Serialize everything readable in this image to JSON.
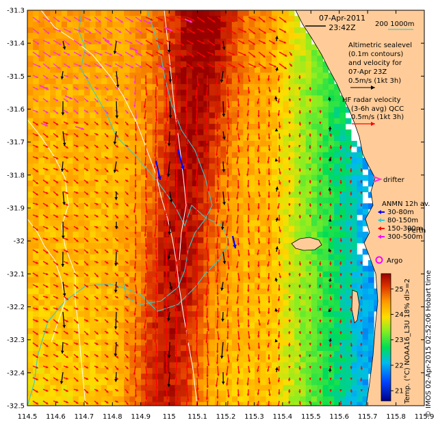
{
  "title": {
    "date": "07-Apr-2011",
    "time": "23:42Z"
  },
  "axes": {
    "lon_ticks": [
      "114.5",
      "114.6",
      "114.7",
      "114.8",
      "114.9",
      "115",
      "115.1",
      "115.2",
      "115.3",
      "115.4",
      "115.5",
      "115.6",
      "115.7",
      "115.8",
      "115.9"
    ],
    "lat_ticks": [
      "-31.3",
      "-31.4",
      "-31.5",
      "-31.6",
      "-31.7",
      "-31.8",
      "-31.9",
      "-32",
      "-32.1",
      "-32.2",
      "-32.3",
      "-32.4",
      "-32.5"
    ],
    "lon_range": [
      114.5,
      115.9
    ],
    "lat_range": [
      -32.5,
      -31.3
    ]
  },
  "legend": {
    "isobaths": "200  1000m",
    "altimetry_line1": "Altimetric sealevel",
    "altimetry_line2": "(0.1m contours)",
    "altimetry_line3": "and velocity for",
    "altimetry_line4": "07-Apr 23Z",
    "altimetry_scale": "0.5m/s (1kt 3h)",
    "hf_line1": "HF radar velocity",
    "hf_line2": "(3-6h avg) QCC",
    "hf_scale": "0.5m/s (1kt 3h)",
    "drifter": "drifter",
    "anmn_title": "ANMN 12h av.",
    "anmn_items": [
      "30-80m",
      "80-150m",
      "150-300m",
      "300-500m"
    ],
    "anmn_colors": [
      "#0000ff",
      "#33cccc",
      "#ff0000",
      "#ff00ff"
    ],
    "argo": "Argo",
    "perth": "Perth"
  },
  "colorbar": {
    "ticks": [
      "21",
      "22",
      "23",
      "24",
      "25"
    ],
    "range": [
      20.6,
      25.6
    ],
    "label": "Temp. (°C) NOAA16_L3U 18% dl>=2"
  },
  "credit": "© IMOS 02-Apr-2015 02:52:06 Hobart time",
  "colors": {
    "land": "#ffcc99",
    "isobath_200": "#33cccc",
    "isobath_1000": "#ffffff",
    "altimetry_arrows": "#000000",
    "hf_arrows": "#ff0000",
    "drifter": "#ff33cc"
  }
}
